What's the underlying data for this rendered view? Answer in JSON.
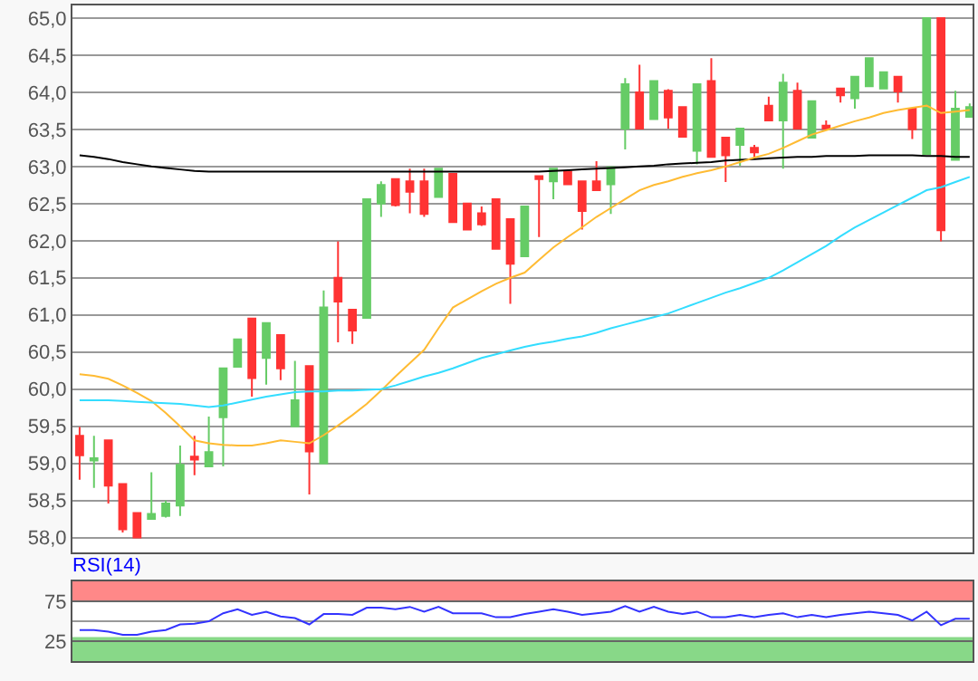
{
  "chart_data": [
    {
      "type": "candlestick",
      "categories": [
        null,
        null,
        null,
        null,
        null,
        null,
        null,
        null,
        null,
        null,
        null,
        null,
        null,
        null,
        null,
        null,
        null,
        null,
        null,
        null,
        null,
        null,
        null,
        null,
        null,
        null,
        null,
        null,
        null,
        null,
        null,
        null,
        null,
        null,
        null,
        null,
        null,
        null,
        null,
        null,
        null,
        null,
        null,
        null,
        null,
        null,
        null,
        null,
        null,
        null,
        null,
        null,
        null,
        null,
        null,
        null,
        null,
        null,
        null,
        null,
        null,
        null,
        null
      ],
      "ohlc": [
        [
          59.37,
          59.49,
          58.78,
          59.11
        ],
        [
          59.04,
          59.37,
          58.67,
          59.07
        ],
        [
          59.31,
          59.31,
          58.46,
          58.7
        ],
        [
          58.72,
          58.72,
          58.07,
          58.11
        ],
        [
          58.33,
          58.33,
          57.99,
          58.0
        ],
        [
          58.25,
          58.88,
          58.25,
          58.32
        ],
        [
          58.29,
          58.5,
          58.27,
          58.46
        ],
        [
          58.43,
          59.24,
          58.29,
          58.98
        ],
        [
          59.09,
          59.37,
          58.84,
          59.05
        ],
        [
          58.96,
          59.63,
          58.96,
          59.15
        ],
        [
          59.62,
          60.28,
          58.96,
          60.28
        ],
        [
          60.3,
          60.67,
          60.3,
          60.67
        ],
        [
          60.95,
          60.95,
          59.9,
          60.15
        ],
        [
          60.42,
          60.89,
          60.06,
          60.89
        ],
        [
          60.73,
          60.73,
          60.12,
          60.28
        ],
        [
          59.5,
          60.38,
          59.5,
          59.85
        ],
        [
          60.31,
          60.31,
          58.58,
          59.16
        ],
        [
          59.0,
          61.33,
          59.0,
          61.1
        ],
        [
          61.5,
          61.99,
          60.63,
          61.18
        ],
        [
          61.07,
          61.07,
          60.61,
          60.79
        ],
        [
          60.96,
          62.56,
          60.96,
          62.56
        ],
        [
          62.5,
          62.8,
          62.32,
          62.75
        ],
        [
          62.83,
          62.83,
          62.46,
          62.48
        ],
        [
          62.8,
          62.97,
          62.37,
          62.66
        ],
        [
          62.8,
          62.97,
          62.32,
          62.36
        ],
        [
          62.59,
          62.97,
          62.59,
          62.97
        ],
        [
          62.9,
          62.9,
          62.25,
          62.25
        ],
        [
          62.5,
          62.5,
          62.15,
          62.15
        ],
        [
          62.37,
          62.46,
          62.2,
          62.22
        ],
        [
          62.56,
          62.56,
          61.89,
          61.89
        ],
        [
          62.29,
          62.29,
          61.15,
          61.69
        ],
        [
          61.79,
          62.46,
          61.79,
          62.46
        ],
        [
          62.87,
          62.87,
          62.05,
          62.83
        ],
        [
          62.8,
          62.97,
          62.56,
          62.97
        ],
        [
          62.93,
          62.93,
          62.76,
          62.76
        ],
        [
          62.8,
          62.8,
          62.15,
          62.4
        ],
        [
          62.8,
          63.07,
          62.68,
          62.68
        ],
        [
          62.76,
          62.99,
          62.36,
          62.99
        ],
        [
          63.51,
          64.19,
          63.23,
          64.11
        ],
        [
          64.0,
          64.37,
          63.51,
          63.51
        ],
        [
          63.64,
          64.15,
          63.64,
          64.15
        ],
        [
          64.02,
          64.04,
          63.51,
          63.66
        ],
        [
          63.8,
          63.8,
          63.4,
          63.4
        ],
        [
          63.21,
          64.11,
          63.03,
          64.11
        ],
        [
          64.15,
          64.46,
          63.13,
          63.13
        ],
        [
          63.39,
          63.39,
          62.79,
          63.15
        ],
        [
          63.29,
          63.51,
          63.01,
          63.51
        ],
        [
          63.25,
          63.29,
          63.11,
          63.19
        ],
        [
          63.82,
          63.94,
          63.62,
          63.62
        ],
        [
          63.62,
          64.25,
          62.97,
          64.13
        ],
        [
          64.02,
          64.13,
          63.51,
          63.51
        ],
        [
          63.39,
          63.88,
          63.39,
          63.88
        ],
        [
          63.55,
          63.62,
          63.51,
          63.51
        ],
        [
          64.05,
          64.05,
          63.86,
          63.96
        ],
        [
          63.92,
          64.21,
          63.78,
          64.21
        ],
        [
          64.08,
          64.46,
          64.08,
          64.46
        ],
        [
          64.05,
          64.27,
          64.05,
          64.27
        ],
        [
          64.21,
          64.21,
          63.86,
          64.01
        ],
        [
          63.78,
          63.78,
          63.37,
          63.5
        ],
        [
          63.17,
          65.0,
          63.17,
          65.0
        ],
        [
          65.0,
          65.0,
          61.99,
          62.14
        ],
        [
          63.09,
          64.02,
          63.09,
          63.78
        ],
        [
          63.67,
          63.85,
          63.67,
          63.8
        ]
      ],
      "colors": [
        "#ff3333",
        "#66cc66",
        "#ff3333",
        "#ff3333",
        "#ff3333",
        "#66cc66",
        "#66cc66",
        "#66cc66",
        "#ff3333",
        "#66cc66",
        "#66cc66",
        "#66cc66",
        "#ff3333",
        "#66cc66",
        "#ff3333",
        "#66cc66",
        "#ff3333",
        "#66cc66",
        "#ff3333",
        "#ff3333",
        "#66cc66",
        "#66cc66",
        "#ff3333",
        "#ff3333",
        "#ff3333",
        "#66cc66",
        "#ff3333",
        "#ff3333",
        "#ff3333",
        "#ff3333",
        "#ff3333",
        "#66cc66",
        "#ff3333",
        "#66cc66",
        "#ff3333",
        "#ff3333",
        "#ff3333",
        "#66cc66",
        "#66cc66",
        "#ff3333",
        "#66cc66",
        "#ff3333",
        "#ff3333",
        "#66cc66",
        "#ff3333",
        "#ff3333",
        "#66cc66",
        "#ff3333",
        "#ff3333",
        "#66cc66",
        "#ff3333",
        "#66cc66",
        "#ff3333",
        "#ff3333",
        "#66cc66",
        "#66cc66",
        "#66cc66",
        "#ff3333",
        "#ff3333",
        "#66cc66",
        "#ff3333",
        "#66cc66",
        "#66cc66"
      ],
      "series": [
        {
          "type": "line",
          "color": "#000000",
          "values": [
            63.15,
            63.13,
            63.1,
            63.06,
            63.03,
            63.0,
            62.98,
            62.96,
            62.94,
            62.93,
            62.93,
            62.93,
            62.93,
            62.93,
            62.93,
            62.93,
            62.93,
            62.93,
            62.93,
            62.93,
            62.93,
            62.93,
            62.93,
            62.93,
            62.93,
            62.93,
            62.93,
            62.93,
            62.93,
            62.93,
            62.93,
            62.93,
            62.93,
            62.94,
            62.95,
            62.96,
            62.97,
            62.98,
            62.99,
            63.0,
            63.01,
            63.03,
            63.04,
            63.05,
            63.06,
            63.08,
            63.09,
            63.1,
            63.11,
            63.12,
            63.13,
            63.13,
            63.14,
            63.14,
            63.14,
            63.15,
            63.15,
            63.15,
            63.15,
            63.14,
            63.14,
            63.13,
            63.13
          ]
        },
        {
          "type": "line",
          "color": "#ffbb33",
          "values": [
            60.2,
            60.18,
            60.14,
            60.05,
            59.95,
            59.84,
            59.68,
            59.5,
            59.31,
            59.27,
            59.25,
            59.24,
            59.24,
            59.27,
            59.31,
            59.29,
            59.27,
            59.38,
            59.51,
            59.65,
            59.8,
            59.98,
            60.17,
            60.35,
            60.53,
            60.82,
            61.1,
            61.21,
            61.32,
            61.42,
            61.5,
            61.57,
            61.74,
            61.91,
            62.05,
            62.18,
            62.32,
            62.44,
            62.56,
            62.68,
            62.75,
            62.8,
            62.86,
            62.91,
            62.95,
            63.0,
            63.06,
            63.12,
            63.17,
            63.25,
            63.34,
            63.43,
            63.49,
            63.55,
            63.61,
            63.66,
            63.72,
            63.76,
            63.79,
            63.82,
            63.72,
            63.74,
            63.76
          ]
        },
        {
          "type": "line",
          "color": "#33ddff",
          "values": [
            59.85,
            59.85,
            59.85,
            59.84,
            59.83,
            59.82,
            59.81,
            59.8,
            59.78,
            59.76,
            59.78,
            59.82,
            59.86,
            59.9,
            59.93,
            59.96,
            59.97,
            59.97,
            59.98,
            59.98,
            59.99,
            60.0,
            60.05,
            60.11,
            60.17,
            60.22,
            60.28,
            60.35,
            60.42,
            60.47,
            60.52,
            60.57,
            60.61,
            60.64,
            60.68,
            60.71,
            60.76,
            60.82,
            60.87,
            60.92,
            60.97,
            61.02,
            61.09,
            61.16,
            61.23,
            61.3,
            61.36,
            61.43,
            61.5,
            61.6,
            61.71,
            61.82,
            61.93,
            62.06,
            62.18,
            62.28,
            62.38,
            62.48,
            62.58,
            62.68,
            62.72,
            62.79,
            62.86
          ]
        }
      ],
      "ylim": [
        57.8,
        65.17
      ],
      "yticks": [
        {
          "value": 58,
          "label": "58,0"
        },
        {
          "value": 58.5,
          "label": "58,5"
        },
        {
          "value": 59,
          "label": "59,0"
        },
        {
          "value": 59.5,
          "label": "59,5"
        },
        {
          "value": 60,
          "label": "60,0"
        },
        {
          "value": 60.5,
          "label": "60,5"
        },
        {
          "value": 61,
          "label": "61,0"
        },
        {
          "value": 61.5,
          "label": "61,5"
        },
        {
          "value": 62,
          "label": "62,0"
        },
        {
          "value": 62.5,
          "label": "62,5"
        },
        {
          "value": 63,
          "label": "63,0"
        },
        {
          "value": 63.5,
          "label": "63,5"
        },
        {
          "value": 64,
          "label": "64,0"
        },
        {
          "value": 64.5,
          "label": "64,5"
        },
        {
          "value": 65,
          "label": "65,0"
        }
      ],
      "grid": "y",
      "tick_labels": "y"
    },
    {
      "type": "line",
      "title": "RSI(14)",
      "categories": [
        null,
        null,
        null,
        null,
        null,
        null,
        null,
        null,
        null,
        null,
        null,
        null,
        null,
        null,
        null,
        null,
        null,
        null,
        null,
        null,
        null,
        null,
        null,
        null,
        null,
        null,
        null,
        null,
        null,
        null,
        null,
        null,
        null,
        null,
        null,
        null,
        null,
        null,
        null,
        null,
        null,
        null,
        null,
        null,
        null,
        null,
        null,
        null,
        null,
        null,
        null,
        null,
        null,
        null,
        null,
        null,
        null,
        null,
        null,
        null,
        null,
        null,
        null
      ],
      "series": [
        {
          "color": "#3333ff",
          "values": [
            39,
            39,
            37,
            33,
            33,
            37,
            39,
            46,
            47,
            50,
            60,
            65,
            58,
            62,
            56,
            54,
            46,
            59,
            59,
            58,
            67,
            67,
            65,
            68,
            62,
            68,
            60,
            60,
            60,
            55,
            55,
            59,
            62,
            65,
            62,
            58,
            60,
            62,
            69,
            62,
            68,
            62,
            59,
            62,
            55,
            55,
            58,
            55,
            58,
            60,
            55,
            58,
            55,
            58,
            60,
            62,
            60,
            58,
            51,
            62,
            45,
            53,
            53
          ]
        }
      ],
      "ylim": [
        0,
        100
      ],
      "yticks": [
        25,
        75
      ],
      "bands": [
        {
          "axis": "y",
          "from": 75,
          "to": 100,
          "color": "#ff8888"
        },
        {
          "axis": "y",
          "from": 0,
          "to": 30,
          "color": "#88d888"
        }
      ],
      "ref_lines": [
        {
          "axis": "y",
          "value": 50,
          "color": "#999999"
        }
      ],
      "grid": "y",
      "tick_labels": "y"
    }
  ]
}
